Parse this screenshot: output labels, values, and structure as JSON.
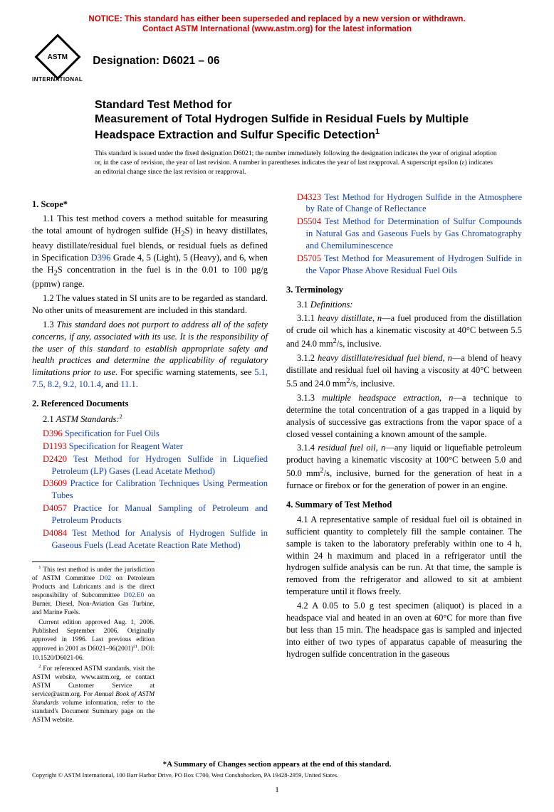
{
  "notice": {
    "line1": "NOTICE: This standard has either been superseded and replaced by a new version or withdrawn.",
    "line2": "Contact ASTM International (www.astm.org) for the latest information"
  },
  "logo": {
    "abbrev": "ASTM",
    "subtitle": "INTERNATIONAL"
  },
  "designation": "Designation: D6021 – 06",
  "title": {
    "lead": "Standard Test Method for",
    "body": "Measurement of Total Hydrogen Sulfide in Residual Fuels by Multiple Headspace Extraction and Sulfur Specific Detection",
    "super": "1"
  },
  "issue_note": "This standard is issued under the fixed designation D6021; the number immediately following the designation indicates the year of original adoption or, in the case of revision, the year of last revision. A number in parentheses indicates the year of last reapproval. A superscript epsilon (ε) indicates an editorial change since the last revision or reapproval.",
  "sections": {
    "scope_head": "1. Scope*",
    "scope_1_1a": "1.1 This test method covers a method suitable for measuring the total amount of hydrogen sulfide (H",
    "scope_1_1b": "S) in heavy distillates, heavy distillate/residual fuel blends, or residual fuels as defined in Specification ",
    "scope_1_1c": " Grade 4, 5 (Light), 5 (Heavy), and 6, when the H",
    "scope_1_1d": "S concentration in the fuel is in the 0.01 to 100 µg/g (ppmw) range.",
    "scope_1_2": "1.2 The values stated in SI units are to be regarded as standard. No other units of measurement are included in this standard.",
    "scope_1_3a": "1.3 ",
    "scope_1_3b": "This standard does not purport to address all of the safety concerns, if any, associated with its use. It is the responsibility of the user of this standard to establish appropriate safety and health practices and determine the applicability of regulatory limitations prior to use.",
    "scope_1_3c": " For specific warning statements, see ",
    "scope_xrefs": "5.1, 7.5, 8.2, 9.2, 10.1.4",
    "scope_and": ", and ",
    "scope_last": "11.1",
    "refdocs_head": "2. Referenced Documents",
    "refdocs_sub": "2.1 ",
    "refdocs_sub_i": "ASTM Standards:",
    "refdocs_sup": "2",
    "refs": [
      {
        "code": "D396",
        "title": "Specification for Fuel Oils"
      },
      {
        "code": "D1193",
        "title": "Specification for Reagent Water"
      },
      {
        "code": "D2420",
        "title": "Test Method for Hydrogen Sulfide in Liquefied Petroleum (LP) Gases (Lead Acetate Method)"
      },
      {
        "code": "D3609",
        "title": "Practice for Calibration Techniques Using Permeation Tubes"
      },
      {
        "code": "D4057",
        "title": "Practice for Manual Sampling of Petroleum and Petroleum Products"
      },
      {
        "code": "D4084",
        "title": "Test Method for Analysis of Hydrogen Sulfide in Gaseous Fuels (Lead Acetate Reaction Rate Method)"
      },
      {
        "code": "D4323",
        "title": "Test Method for Hydrogen Sulfide in the Atmosphere by Rate of Change of Reflectance"
      },
      {
        "code": "D5504",
        "title": "Test Method for Determination of Sulfur Compounds in Natural Gas and Gaseous Fuels by Gas Chromatography and Chemiluminescence"
      },
      {
        "code": "D5705",
        "title": "Test Method for Measurement of Hydrogen Sulfide in the Vapor Phase Above Residual Fuel Oils"
      }
    ],
    "term_head": "3. Terminology",
    "term_sub": "3.1 ",
    "term_sub_i": "Definitions:",
    "term_311a": "3.1.1 ",
    "term_311b": "heavy distillate",
    "term_311c": ", n",
    "term_311d": "—a fuel produced from the distillation of crude oil which has a kinematic viscosity at 40°C between 5.5 and 24.0 mm",
    "term_311e": "/s, inclusive.",
    "term_312a": "3.1.2 ",
    "term_312b": "heavy distillate/residual fuel blend",
    "term_312c": ", n",
    "term_312d": "—a blend of heavy distillate and residual fuel oil having a viscosity at 40°C between 5.5 and 24.0 mm",
    "term_312e": "/s, inclusive.",
    "term_313a": "3.1.3 ",
    "term_313b": "multiple headspace extraction",
    "term_313c": ", n",
    "term_313d": "—a technique to determine the total concentration of a gas trapped in a liquid by analysis of successive gas extractions from the vapor space of a closed vessel containing a known amount of the sample.",
    "term_314a": "3.1.4 ",
    "term_314b": "residual fuel oil",
    "term_314c": ", n",
    "term_314d": "—any liquid or liquefiable petroleum product having a kinematic viscosity at 100°C between 5.0 and 50.0 mm",
    "term_314e": "/s, inclusive, burned for the generation of heat in a furnace or firebox or for the generation of power in an engine.",
    "summ_head": "4. Summary of Test Method",
    "summ_41": "4.1 A representative sample of residual fuel oil is obtained in sufficient quantity to completely fill the sample container. The sample is taken to the laboratory preferably within one to 4 h, within 24 h maximum and placed in a refrigerator until the hydrogen sulfide analysis can be run. At that time, the sample is removed from the refrigerator and allowed to sit at ambient temperature until it flows freely.",
    "summ_42": "4.2 A 0.05 to 5.0 g test specimen (aliquot) is placed in a headspace vial and heated in an oven at 60°C for more than five but less than 15 min. The headspace gas is sampled and injected into either of two types of apparatus capable of measuring the hydrogen sulfide concentration in the gaseous"
  },
  "footnotes": {
    "f1a": " This test method is under the jurisdiction of ASTM Committee ",
    "f1b": " on Petroleum Products and Lubricants and is the direct responsibility of Subcommittee ",
    "f1c": " on Burner, Diesel, Non-Aviation Gas Turbine, and Marine Fuels.",
    "f1_cur": "Current edition approved Aug. 1, 2006. Published September 2006. Originally approved in 1996. Last previous edition approved in 2001 as D6021–96(2001)",
    "f1_doi": ". DOI: 10.1520/D6021-06.",
    "f2a": " For referenced ASTM standards, visit the ASTM website, www.astm.org, or contact ASTM Customer Service at service@astm.org. For ",
    "f2b": "Annual Book of ASTM Standards",
    "f2c": " volume information, refer to the standard's Document Summary page on the ASTM website.",
    "d02": "D02",
    "d02e0": "D02.E0",
    "eps": "ε1"
  },
  "end_note": "*A Summary of Changes section appears at the end of this standard.",
  "copyright": "Copyright © ASTM International, 100 Barr Harbor Drive, PO Box C700, West Conshohocken, PA 19428-2959, United States.",
  "page_num": "1",
  "d396": "D396",
  "colors": {
    "red": "#d00000",
    "blue": "#1540b0"
  }
}
